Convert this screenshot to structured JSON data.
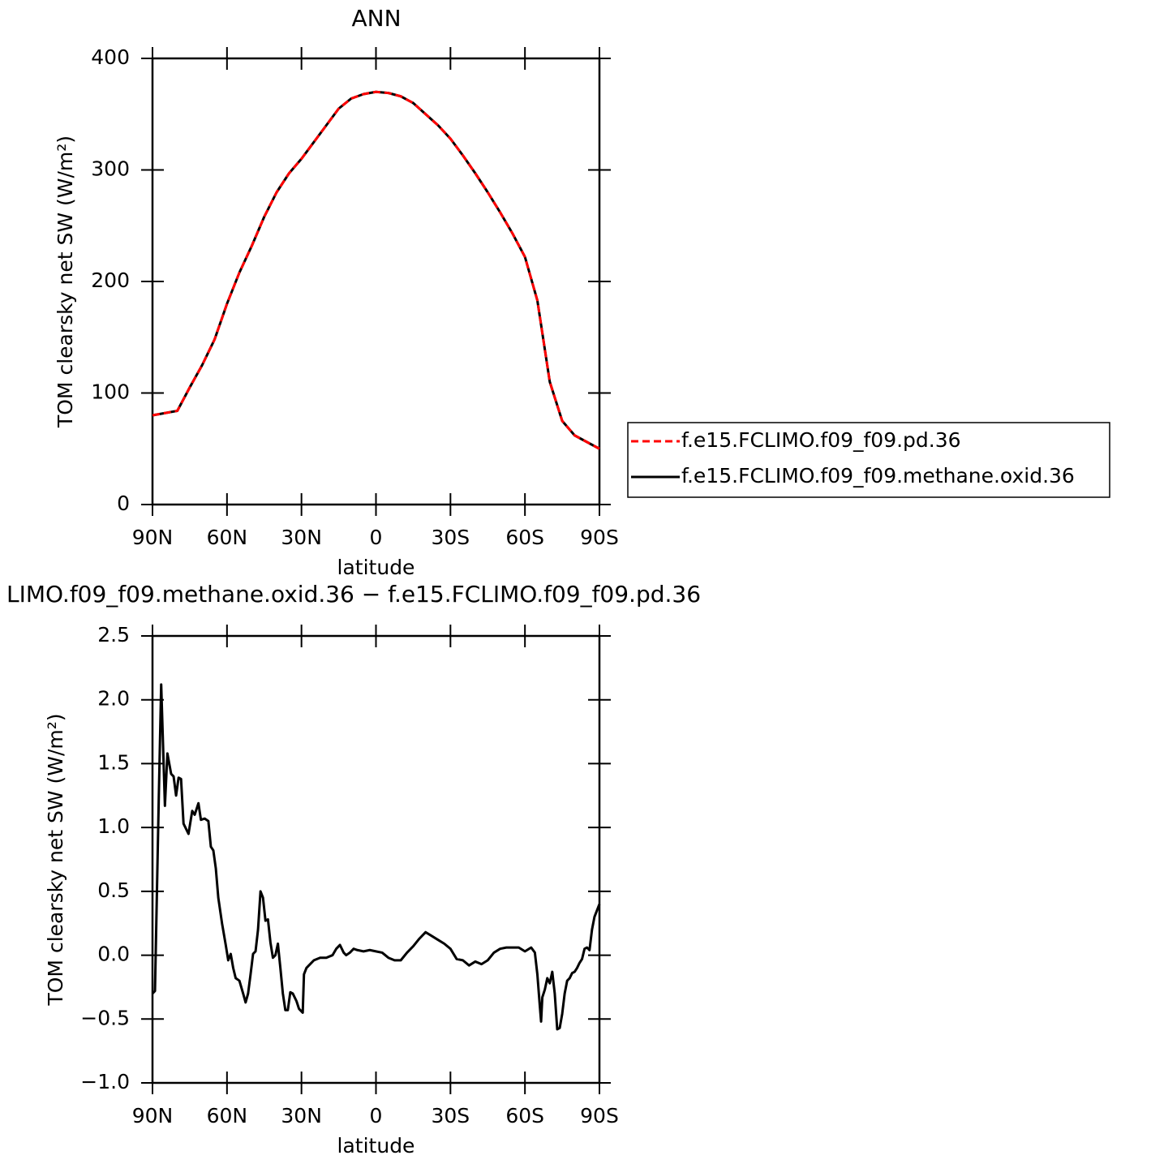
{
  "chart_data": [
    {
      "type": "line",
      "title": "ANN",
      "xlabel": "latitude",
      "ylabel": "TOM clearsky net SW (W/m²)",
      "x": [
        90,
        85,
        80,
        75,
        70,
        65,
        60,
        55,
        50,
        45,
        40,
        35,
        30,
        25,
        20,
        15,
        10,
        5,
        0,
        -5,
        -10,
        -15,
        -20,
        -25,
        -30,
        -35,
        -40,
        -45,
        -50,
        -55,
        -60,
        -65,
        -70,
        -75,
        -80,
        -85,
        -90
      ],
      "series": [
        {
          "name": "f.e15.FCLIMO.f09_f09.pd.36",
          "color": "#ff0000",
          "style": "dashed",
          "values": [
            80,
            82,
            84,
            105,
            125,
            148,
            180,
            208,
            232,
            258,
            280,
            297,
            310,
            325,
            340,
            355,
            364,
            368,
            370,
            369,
            366,
            360,
            350,
            340,
            328,
            313,
            297,
            280,
            262,
            243,
            222,
            183,
            110,
            75,
            62,
            56,
            50
          ]
        },
        {
          "name": "f.e15.FCLIMO.f09_f09.methane.oxid.36",
          "color": "#000000",
          "style": "solid",
          "values": [
            80,
            82,
            84,
            105,
            125,
            148,
            180,
            208,
            232,
            258,
            280,
            297,
            310,
            325,
            340,
            355,
            364,
            368,
            370,
            369,
            366,
            360,
            350,
            340,
            328,
            313,
            297,
            280,
            262,
            243,
            222,
            183,
            110,
            75,
            62,
            56,
            50
          ]
        }
      ],
      "xlim": [
        90,
        -90
      ],
      "xticks": [
        {
          "value": 90,
          "label": "90N"
        },
        {
          "value": 60,
          "label": "60N"
        },
        {
          "value": 30,
          "label": "30N"
        },
        0,
        {
          "value": -30,
          "label": "30S"
        },
        {
          "value": -60,
          "label": "60S"
        },
        {
          "value": -90,
          "label": "90S"
        }
      ],
      "ylim": [
        0,
        400
      ],
      "yticks": [
        0,
        100,
        200,
        300,
        400
      ],
      "grid": false,
      "legend": "outside-right"
    },
    {
      "type": "line",
      "title": "LIMO.f09_f09.methane.oxid.36 − f.e15.FCLIMO.f09_f09.pd.36",
      "xlabel": "latitude",
      "ylabel": "TOM clearsky net SW (W/m²)",
      "x": [
        90,
        89,
        87.5,
        86.5,
        85,
        84,
        82.5,
        81.5,
        80.5,
        79.5,
        78.5,
        77.5,
        75.5,
        74,
        73,
        71.5,
        70.5,
        69,
        67.5,
        66.5,
        65.5,
        64.5,
        63.5,
        62,
        60.5,
        59.5,
        58.5,
        57.5,
        56.5,
        55,
        53.5,
        52.5,
        51.5,
        50.5,
        49.5,
        48.5,
        47.5,
        46.5,
        45.5,
        44.5,
        43.5,
        42.5,
        41.5,
        40.5,
        39.5,
        38.5,
        37.5,
        36.5,
        35.5,
        34.5,
        33.5,
        32,
        31,
        29.5,
        29,
        28,
        26.5,
        25,
        22.5,
        20,
        17.5,
        16,
        14.5,
        13,
        12,
        10.5,
        9,
        7.5,
        5,
        2.5,
        0,
        -2.5,
        -5,
        -7.5,
        -10,
        -12.5,
        -15,
        -17.5,
        -20,
        -22.5,
        -25,
        -27.5,
        -30,
        -32.5,
        -35,
        -37.5,
        -40,
        -42.5,
        -45,
        -47.5,
        -50,
        -52.5,
        -55,
        -57.5,
        -60,
        -62.5,
        -64,
        -65,
        -66,
        -66.5,
        -67,
        -68,
        -69,
        -70,
        -71,
        -72,
        -73,
        -74,
        -75,
        -76,
        -77,
        -78,
        -79,
        -80,
        -81,
        -82,
        -83,
        -84,
        -85,
        -86,
        -87,
        -88,
        -90
      ],
      "values": [
        -0.3,
        -0.28,
        1.2,
        2.12,
        1.17,
        1.58,
        1.42,
        1.4,
        1.25,
        1.39,
        1.38,
        1.03,
        0.95,
        1.13,
        1.1,
        1.19,
        1.06,
        1.07,
        1.05,
        0.85,
        0.82,
        0.68,
        0.45,
        0.25,
        0.08,
        -0.04,
        0.01,
        -0.1,
        -0.18,
        -0.2,
        -0.3,
        -0.37,
        -0.3,
        -0.15,
        0.01,
        0.03,
        0.2,
        0.5,
        0.45,
        0.27,
        0.28,
        0.1,
        -0.02,
        0.0,
        0.09,
        -0.1,
        -0.3,
        -0.43,
        -0.43,
        -0.29,
        -0.3,
        -0.36,
        -0.42,
        -0.45,
        -0.15,
        -0.1,
        -0.07,
        -0.04,
        -0.02,
        -0.02,
        0.0,
        0.05,
        0.08,
        0.02,
        0.0,
        0.02,
        0.05,
        0.04,
        0.03,
        0.04,
        0.03,
        0.02,
        -0.02,
        -0.04,
        -0.04,
        0.02,
        0.07,
        0.13,
        0.18,
        0.15,
        0.12,
        0.09,
        0.05,
        -0.03,
        -0.04,
        -0.08,
        -0.05,
        -0.07,
        -0.04,
        0.02,
        0.05,
        0.06,
        0.06,
        0.06,
        0.03,
        0.06,
        0.02,
        -0.15,
        -0.4,
        -0.52,
        -0.33,
        -0.27,
        -0.18,
        -0.22,
        -0.13,
        -0.3,
        -0.58,
        -0.57,
        -0.46,
        -0.3,
        -0.2,
        -0.18,
        -0.14,
        -0.13,
        -0.1,
        -0.06,
        -0.03,
        0.05,
        0.06,
        0.04,
        0.2,
        0.3,
        0.4
      ],
      "color": "#000000",
      "xlim": [
        90,
        -90
      ],
      "xticks": [
        {
          "value": 90,
          "label": "90N"
        },
        {
          "value": 60,
          "label": "60N"
        },
        {
          "value": 30,
          "label": "30N"
        },
        0,
        {
          "value": -30,
          "label": "30S"
        },
        {
          "value": -60,
          "label": "60S"
        },
        {
          "value": -90,
          "label": "90S"
        }
      ],
      "ylim": [
        -1,
        2.5
      ],
      "yticks": [
        {
          "value": -1,
          "label": "−1.0"
        },
        {
          "value": -0.5,
          "label": "−0.5"
        },
        {
          "value": 0,
          "label": "0.0"
        },
        0.5,
        {
          "value": 1,
          "label": "1.0"
        },
        1.5,
        {
          "value": 2,
          "label": "2.0"
        },
        2.5
      ],
      "grid": false
    }
  ]
}
